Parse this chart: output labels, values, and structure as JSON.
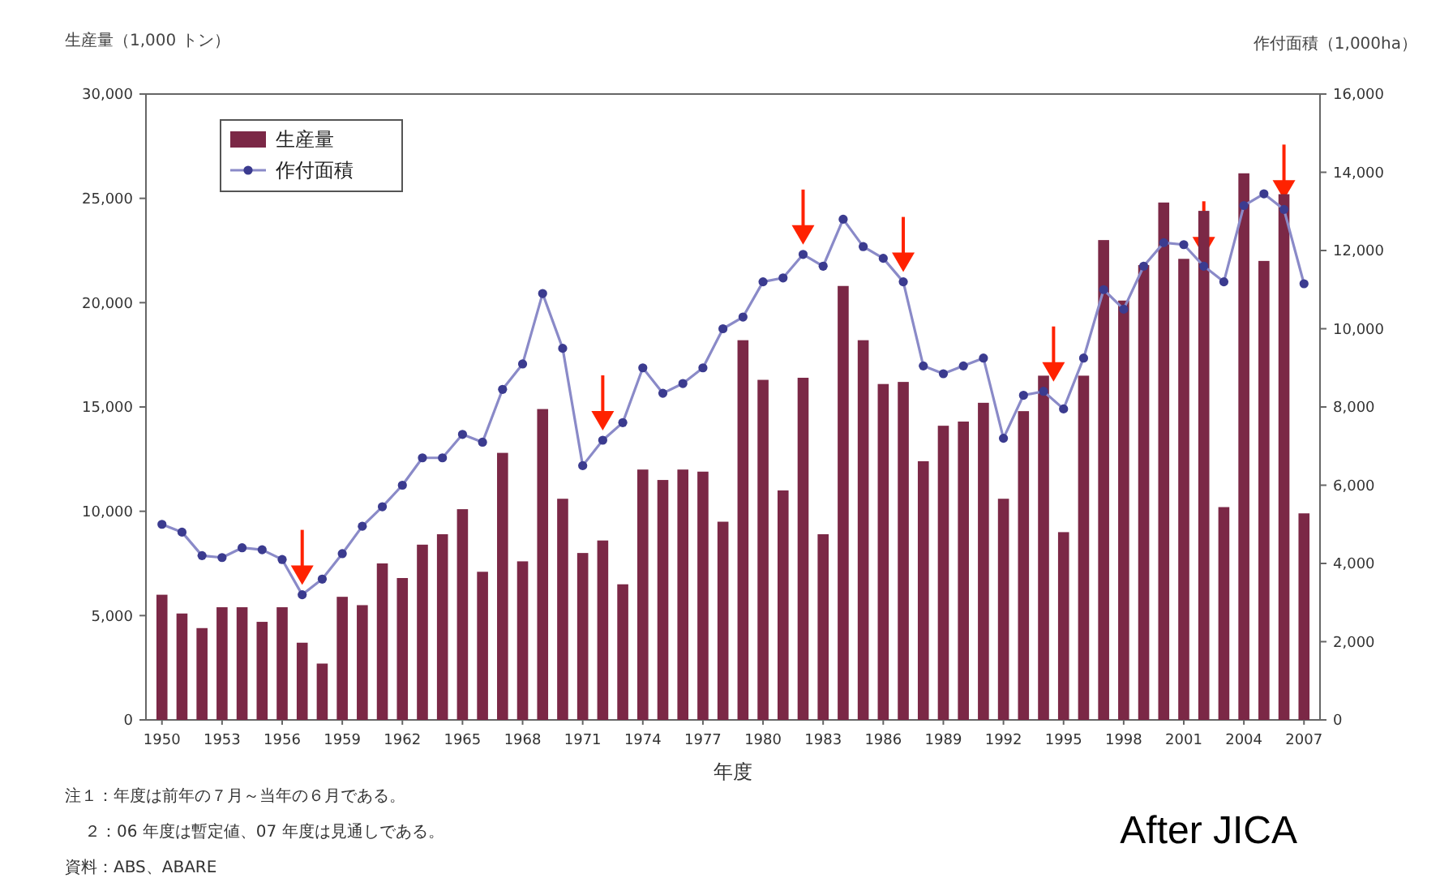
{
  "chart_data": {
    "type": "bar",
    "ylabel": "生産量（1,000 トン）",
    "y2label": "作付面積（1,000ha）",
    "xlabel": "年度",
    "categories": [
      "1950",
      null,
      null,
      "1953",
      null,
      null,
      "1956",
      null,
      null,
      "1959",
      null,
      null,
      "1962",
      null,
      null,
      "1965",
      null,
      null,
      "1968",
      null,
      null,
      "1971",
      null,
      null,
      "1974",
      null,
      null,
      "1977",
      null,
      null,
      "1980",
      null,
      null,
      "1983",
      null,
      null,
      "1986",
      null,
      null,
      "1989",
      null,
      null,
      "1992",
      null,
      null,
      "1995",
      null,
      null,
      "1998",
      null,
      null,
      "2001",
      null,
      null,
      "2004",
      null,
      null,
      "2007"
    ],
    "series": [
      {
        "name": "生産量",
        "color": "#7b2846",
        "values": [
          6000,
          5100,
          4400,
          5400,
          5400,
          4700,
          5400,
          3700,
          2700,
          5900,
          5500,
          7500,
          6800,
          8400,
          8900,
          10100,
          7100,
          12800,
          7600,
          14900,
          10600,
          8000,
          8600,
          6500,
          12000,
          11500,
          12000,
          11900,
          9500,
          18200,
          16300,
          11000,
          16400,
          8900,
          20800,
          18200,
          16100,
          16200,
          12400,
          14100,
          14300,
          15200,
          10600,
          14800,
          16500,
          9000,
          16500,
          23000,
          20100,
          21800,
          24800,
          22100,
          24400,
          10200,
          26200,
          22000,
          25200,
          9900
        ]
      },
      {
        "name": "作付面積",
        "type": "line",
        "axis": "y2",
        "color": "#3b3b8f",
        "values": [
          5000,
          4800,
          4200,
          4150,
          4400,
          4350,
          4100,
          3200,
          3600,
          4250,
          4950,
          5450,
          6000,
          6700,
          6700,
          7300,
          7100,
          8450,
          9100,
          10900,
          9500,
          6500,
          7150,
          7600,
          9000,
          8350,
          8600,
          9000,
          10000,
          10300,
          11200,
          11300,
          11900,
          11600,
          12800,
          12100,
          11800,
          11200,
          9050,
          8850,
          9050,
          9250,
          7200,
          8300,
          8400,
          7950,
          9250,
          11000,
          10500,
          11600,
          12200,
          12150,
          11600,
          11200,
          13150,
          13450,
          13050,
          11150
        ]
      }
    ],
    "ylim": [
      0,
      30000
    ],
    "yticks": [
      0,
      {
        "value": 5000,
        "label": "5,000"
      },
      {
        "value": 10000,
        "label": "10,000"
      },
      {
        "value": 15000,
        "label": "15,000"
      },
      {
        "value": 20000,
        "label": "20,000"
      },
      {
        "value": 25000,
        "label": "25,000"
      },
      {
        "value": 30000,
        "label": "30,000"
      }
    ],
    "y2lim": [
      0,
      16000
    ],
    "y2ticks": [
      0,
      {
        "value": 2000,
        "label": "2,000"
      },
      {
        "value": 4000,
        "label": "4,000"
      },
      {
        "value": 6000,
        "label": "6,000"
      },
      {
        "value": 8000,
        "label": "8,000"
      },
      {
        "value": 10000,
        "label": "10,000"
      },
      {
        "value": 12000,
        "label": "12,000"
      },
      {
        "value": 14000,
        "label": "14,000"
      },
      {
        "value": 16000,
        "label": "16,000"
      }
    ],
    "legend": "top left",
    "marker": "circle",
    "annotations": [
      "注１：年度は前年の７月～当年の６月である。",
      "２：06 年度は暫定値、07 年度は見通しである。",
      "資料：ABS、ABARE",
      "After JICA"
    ]
  }
}
